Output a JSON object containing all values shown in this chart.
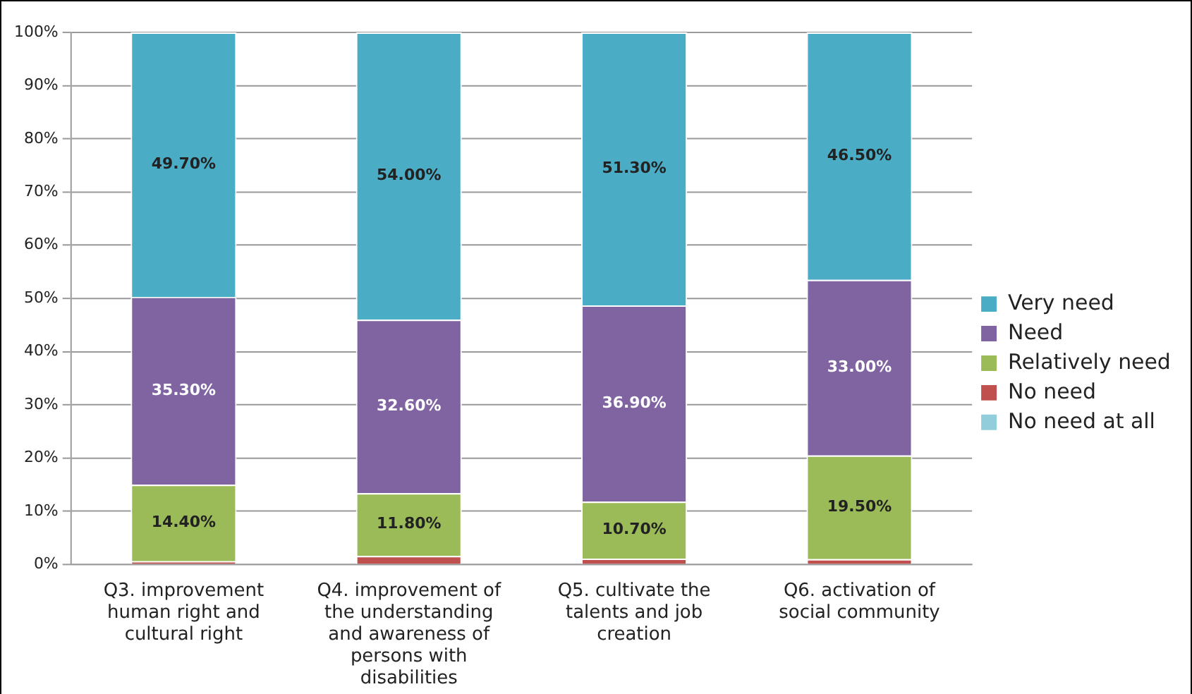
{
  "chart_data": {
    "type": "bar",
    "stacked": true,
    "categories": [
      "Q3. improvement human right and cultural right",
      "Q4. improvement of the understanding and awareness of persons with disabilities",
      "Q5. cultivate the talents and job creation",
      "Q6. activation of social community"
    ],
    "series": [
      {
        "name": "No need at all",
        "color": "#92cddc",
        "values": [
          0,
          0,
          0,
          0
        ],
        "value_labels": [
          null,
          null,
          null,
          null
        ]
      },
      {
        "name": "No need",
        "color": "#c0504d",
        "values": [
          0.6,
          1.6,
          1.1,
          1.0
        ],
        "value_labels": [
          null,
          null,
          null,
          null
        ]
      },
      {
        "name": "Relatively need",
        "color": "#9bbb59",
        "values": [
          14.4,
          11.8,
          10.7,
          19.5
        ],
        "value_labels": [
          "14.40%",
          "11.80%",
          "10.70%",
          "19.50%"
        ]
      },
      {
        "name": "Need",
        "color": "#8064a2",
        "values": [
          35.3,
          32.6,
          36.9,
          33.0
        ],
        "value_labels": [
          "35.30%",
          "32.60%",
          "36.90%",
          "33.00%"
        ]
      },
      {
        "name": "Very need",
        "color": "#4bacc6",
        "values": [
          49.7,
          54.0,
          51.3,
          46.5
        ],
        "value_labels": [
          "49.70%",
          "54.00%",
          "51.30%",
          "46.50%"
        ]
      }
    ],
    "ylim": [
      0,
      100
    ],
    "yticks": [
      {
        "value": 0,
        "label": "0%"
      },
      {
        "value": 10,
        "label": "10%"
      },
      {
        "value": 20,
        "label": "20%"
      },
      {
        "value": 30,
        "label": "30%"
      },
      {
        "value": 40,
        "label": "40%"
      },
      {
        "value": 50,
        "label": "50%"
      },
      {
        "value": 60,
        "label": "60%"
      },
      {
        "value": 70,
        "label": "70%"
      },
      {
        "value": 80,
        "label": "80%"
      },
      {
        "value": 90,
        "label": "90%"
      },
      {
        "value": 100,
        "label": "100%"
      }
    ],
    "grid": "y",
    "legend": "right"
  }
}
